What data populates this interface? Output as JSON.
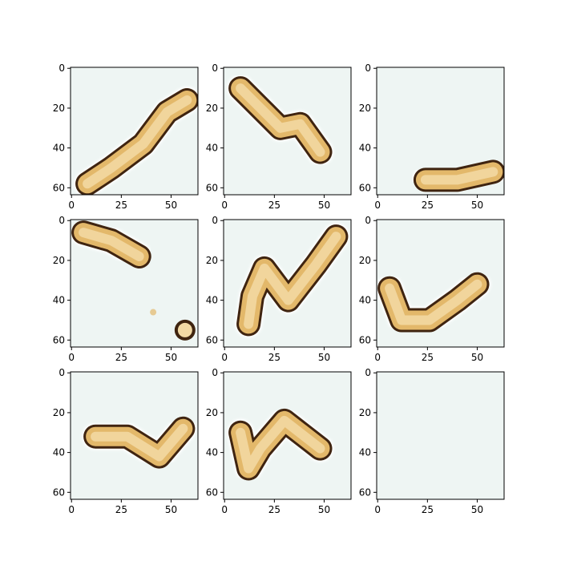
{
  "chart_data": {
    "type": "image-grid",
    "rows": 3,
    "cols": 3,
    "x_ticks": [
      0,
      25,
      50
    ],
    "y_ticks": [
      0,
      20,
      40,
      60
    ],
    "xlim": [
      -0.5,
      63.5
    ],
    "ylim": [
      63.5,
      -0.5
    ],
    "colors": {
      "background": "#eef5f3",
      "fill": "#e3b86a",
      "fill_light": "#f3d9a4",
      "outline": "#3f2410",
      "halo": "#ffffff"
    },
    "panels": [
      {
        "shape": "diagonal elongated blob",
        "path": [
          [
            8,
            58
          ],
          [
            20,
            50
          ],
          [
            36,
            38
          ],
          [
            48,
            22
          ],
          [
            58,
            16
          ]
        ]
      },
      {
        "shape": "ring blob",
        "path": [
          [
            8,
            10
          ],
          [
            20,
            22
          ],
          [
            28,
            30
          ],
          [
            38,
            28
          ],
          [
            48,
            42
          ]
        ]
      },
      {
        "shape": "horizontal capsule",
        "path": [
          [
            24,
            56
          ],
          [
            40,
            56
          ],
          [
            58,
            52
          ]
        ]
      },
      {
        "shape": "small capsule with dot",
        "path": [
          [
            6,
            6
          ],
          [
            20,
            10
          ],
          [
            34,
            18
          ]
        ],
        "extra_dot": [
          57,
          55
        ]
      },
      {
        "shape": "hook blob",
        "path": [
          [
            12,
            52
          ],
          [
            14,
            38
          ],
          [
            20,
            24
          ],
          [
            32,
            40
          ],
          [
            46,
            22
          ],
          [
            56,
            8
          ]
        ]
      },
      {
        "shape": "v-shaped blob",
        "path": [
          [
            6,
            34
          ],
          [
            12,
            50
          ],
          [
            26,
            50
          ],
          [
            40,
            40
          ],
          [
            50,
            32
          ]
        ]
      },
      {
        "shape": "large rounded blob",
        "path": [
          [
            12,
            32
          ],
          [
            28,
            32
          ],
          [
            44,
            42
          ],
          [
            56,
            28
          ]
        ]
      },
      {
        "shape": "two-part blob",
        "path": [
          [
            8,
            30
          ],
          [
            12,
            48
          ],
          [
            18,
            38
          ],
          [
            30,
            24
          ],
          [
            48,
            38
          ]
        ]
      },
      {
        "shape": "empty",
        "path": []
      }
    ]
  }
}
